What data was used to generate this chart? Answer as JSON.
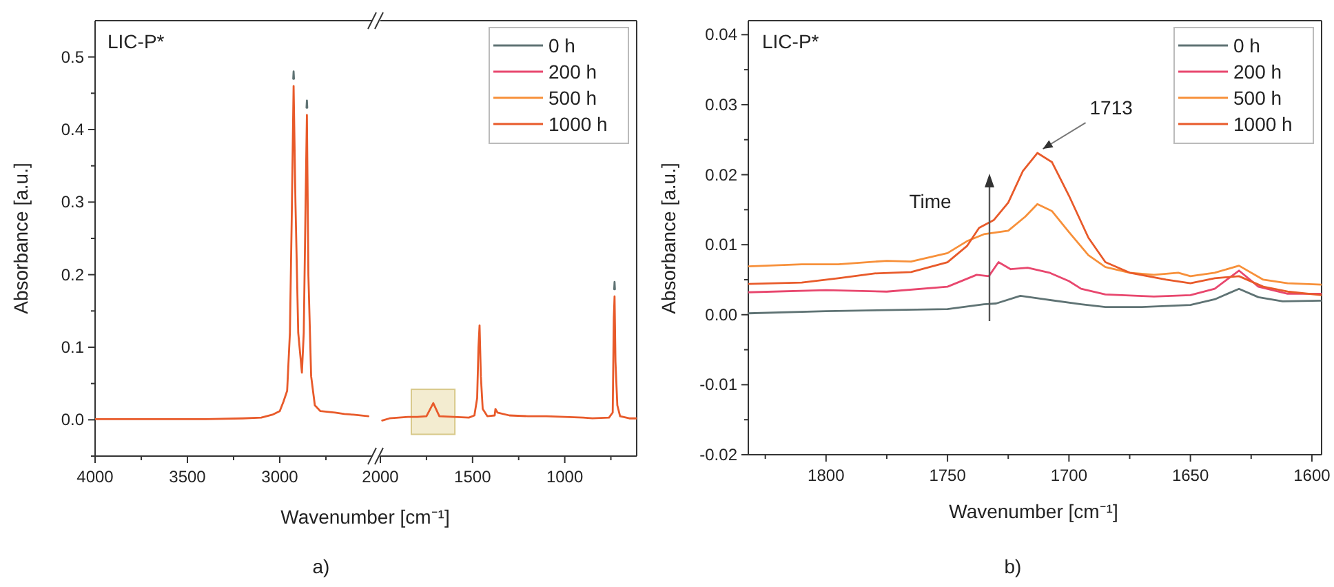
{
  "chart_data": [
    {
      "type": "line",
      "ylabel": "Absorbance [a.u.]",
      "xlabel": "Wavenumber [cm⁻¹]",
      "annotations": [
        "LIC-P*",
        "a)"
      ],
      "xlim": [
        4000,
        2500
      ],
      "xticks": [
        4000,
        {
          "value": 3750,
          "label": null
        },
        3500,
        {
          "value": 3250,
          "label": null
        },
        3000,
        {
          "value": 2750,
          "label": null
        }
      ],
      "ylim": [
        -0.05,
        0.55
      ],
      "yticks": [
        {
          "value": -0.05,
          "label": null
        },
        {
          "value": 0,
          "label": "0.0"
        },
        {
          "value": 0.05,
          "label": null
        },
        {
          "value": 0.1,
          "label": "0.1"
        },
        {
          "value": 0.15,
          "label": null
        },
        {
          "value": 0.2,
          "label": "0.2"
        },
        {
          "value": 0.25,
          "label": null
        },
        {
          "value": 0.3,
          "label": "0.3"
        },
        {
          "value": 0.35,
          "label": null
        },
        {
          "value": 0.4,
          "label": "0.4"
        },
        {
          "value": 0.45,
          "label": null
        },
        {
          "value": 0.5,
          "label": "0.5"
        }
      ],
      "x": [
        4000,
        3800,
        3600,
        3400,
        3200,
        3100,
        3040,
        3000,
        2980,
        2960,
        2945,
        2935,
        2925,
        2915,
        2900,
        2880,
        2870,
        2860,
        2853,
        2845,
        2830,
        2810,
        2780,
        2700,
        2650,
        2600,
        2520
      ],
      "series": [
        {
          "color": "#5f7374",
          "x": [
            2927,
            2925,
            2923,
            2880,
            2855,
            2853,
            2851
          ],
          "values": [
            0.47,
            0.48,
            0.47,
            null,
            0.43,
            0.44,
            0.43
          ]
        },
        {
          "color": "#e85a2a",
          "values": [
            0.001,
            0.001,
            0.001,
            0.001,
            0.002,
            0.003,
            0.007,
            0.012,
            0.025,
            0.04,
            0.12,
            0.28,
            0.46,
            0.3,
            0.12,
            0.065,
            0.12,
            0.3,
            0.42,
            0.2,
            0.06,
            0.02,
            0.012,
            0.01,
            0.008,
            0.007,
            0.005
          ]
        }
      ]
    },
    {
      "type": "line",
      "tick_labels": "x",
      "legend": "top right",
      "xlim": [
        2000,
        610
      ],
      "xticks": [
        2000,
        {
          "value": 1750,
          "label": null
        },
        1500,
        {
          "value": 1250,
          "label": null
        },
        1000,
        {
          "value": 750,
          "label": null
        }
      ],
      "ylim": [
        -0.05,
        0.55
      ],
      "series": [
        {
          "name": "0 h",
          "color": "#5f7374",
          "x": [
            732,
            730,
            728
          ],
          "values": [
            0.18,
            0.19,
            0.18
          ]
        },
        {
          "name": "200 h",
          "color": "#e8476e"
        },
        {
          "name": "500 h",
          "color": "#f7903a"
        },
        {
          "name": "1000 h",
          "color": "#e85a2a",
          "x": [
            1990,
            1950,
            1900,
            1850,
            1800,
            1750,
            1713,
            1680,
            1600,
            1520,
            1490,
            1475,
            1468,
            1462,
            1455,
            1445,
            1420,
            1380,
            1376,
            1365,
            1300,
            1200,
            1100,
            1000,
            900,
            850,
            760,
            740,
            734,
            730,
            725,
            715,
            700,
            650,
            610
          ],
          "values": [
            -0.001,
            0.002,
            0.003,
            0.004,
            0.004,
            0.005,
            0.023,
            0.005,
            0.004,
            0.003,
            0.006,
            0.03,
            0.1,
            0.13,
            0.06,
            0.015,
            0.005,
            0.006,
            0.015,
            0.01,
            0.006,
            0.005,
            0.005,
            0.004,
            0.003,
            0.002,
            0.003,
            0.01,
            0.14,
            0.17,
            0.08,
            0.02,
            0.005,
            0.002,
            0.002
          ]
        }
      ]
    },
    {
      "type": "line",
      "ylabel": "Absorbance [a.u.]",
      "xlabel": "Wavenumber [cm⁻¹]",
      "legend": "top right",
      "annotations": [
        "LIC-P*",
        {
          "text": "1713",
          "x": 1713,
          "y": 0.0231
        },
        "Time",
        "b)"
      ],
      "xlim": [
        1832,
        1596
      ],
      "xticks": [
        {
          "value": 1825,
          "label": null
        },
        1800,
        {
          "value": 1775,
          "label": null
        },
        1750,
        {
          "value": 1725,
          "label": null
        },
        1700,
        {
          "value": 1675,
          "label": null
        },
        1650,
        {
          "value": 1625,
          "label": null
        },
        1600
      ],
      "ylim": [
        -0.02,
        0.042
      ],
      "yticks": [
        {
          "value": -0.02,
          "label": "-0.02"
        },
        {
          "value": -0.015,
          "label": null
        },
        {
          "value": -0.01,
          "label": "-0.01"
        },
        {
          "value": -0.005,
          "label": null
        },
        {
          "value": 0,
          "label": "0.00"
        },
        {
          "value": 0.005,
          "label": null
        },
        {
          "value": 0.01,
          "label": "0.01"
        },
        {
          "value": 0.015,
          "label": null
        },
        {
          "value": 0.02,
          "label": "0.02"
        },
        {
          "value": 0.025,
          "label": null
        },
        {
          "value": 0.03,
          "label": "0.03"
        },
        {
          "value": 0.035,
          "label": null
        },
        {
          "value": 0.04,
          "label": "0.04"
        }
      ],
      "series": [
        {
          "name": "0 h",
          "color": "#5f7374",
          "x": [
            1832,
            1800,
            1750,
            1735,
            1730,
            1720,
            1710,
            1695,
            1685,
            1670,
            1650,
            1640,
            1630,
            1622,
            1612,
            1596
          ],
          "values": [
            0.0002,
            0.0005,
            0.0008,
            0.0015,
            0.0016,
            0.0027,
            0.0022,
            0.0015,
            0.0011,
            0.0011,
            0.0014,
            0.0022,
            0.0037,
            0.0025,
            0.0019,
            0.002
          ]
        },
        {
          "name": "200 h",
          "color": "#e8476e",
          "x": [
            1832,
            1800,
            1775,
            1750,
            1738,
            1733,
            1729,
            1724,
            1717,
            1708,
            1700,
            1695,
            1685,
            1665,
            1650,
            1640,
            1630,
            1622,
            1610,
            1596
          ],
          "values": [
            0.0032,
            0.0035,
            0.0033,
            0.004,
            0.0057,
            0.0055,
            0.0075,
            0.0065,
            0.0067,
            0.006,
            0.0048,
            0.0037,
            0.0029,
            0.0026,
            0.0028,
            0.0037,
            0.0063,
            0.004,
            0.003,
            0.003
          ]
        },
        {
          "name": "500 h",
          "color": "#f7903a",
          "x": [
            1832,
            1810,
            1795,
            1775,
            1765,
            1750,
            1742,
            1735,
            1725,
            1718,
            1713,
            1707,
            1700,
            1692,
            1685,
            1675,
            1665,
            1655,
            1650,
            1640,
            1630,
            1620,
            1610,
            1596
          ],
          "values": [
            0.0069,
            0.0072,
            0.0072,
            0.0077,
            0.0076,
            0.0088,
            0.0105,
            0.0115,
            0.012,
            0.014,
            0.0158,
            0.0148,
            0.0118,
            0.0085,
            0.0068,
            0.006,
            0.0057,
            0.006,
            0.0055,
            0.006,
            0.007,
            0.005,
            0.0045,
            0.0043
          ]
        },
        {
          "name": "1000 h",
          "color": "#e85a2a",
          "x": [
            1832,
            1810,
            1795,
            1780,
            1765,
            1750,
            1742,
            1737,
            1731,
            1725,
            1719,
            1713,
            1707,
            1700,
            1692,
            1685,
            1675,
            1660,
            1650,
            1640,
            1630,
            1620,
            1610,
            1596
          ],
          "values": [
            0.0044,
            0.0046,
            0.0052,
            0.0059,
            0.0061,
            0.0075,
            0.0098,
            0.0124,
            0.0135,
            0.016,
            0.0205,
            0.0231,
            0.0218,
            0.017,
            0.011,
            0.0075,
            0.006,
            0.005,
            0.0045,
            0.0052,
            0.0055,
            0.004,
            0.0033,
            0.0028
          ]
        }
      ]
    }
  ]
}
